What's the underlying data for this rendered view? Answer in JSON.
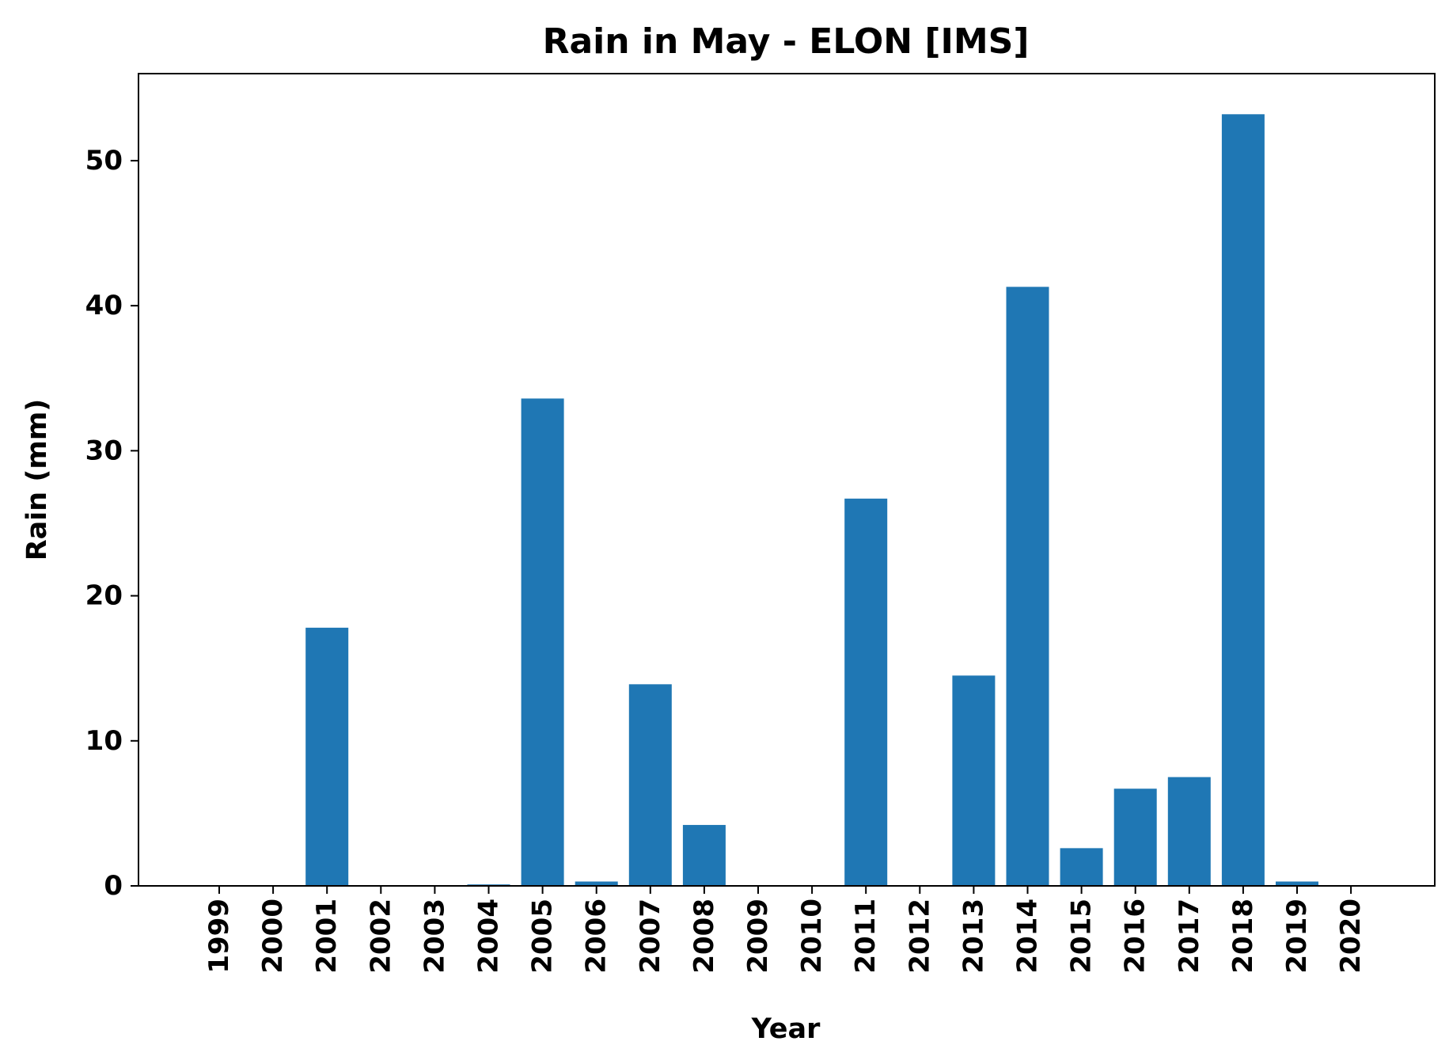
{
  "chart_data": {
    "type": "bar",
    "title": "Rain in May - ELON [IMS]",
    "xlabel": "Year",
    "ylabel": "Rain (mm)",
    "categories": [
      "1999",
      "2000",
      "2001",
      "2002",
      "2003",
      "2004",
      "2005",
      "2006",
      "2007",
      "2008",
      "2009",
      "2010",
      "2011",
      "2012",
      "2013",
      "2014",
      "2015",
      "2016",
      "2017",
      "2018",
      "2019",
      "2020"
    ],
    "values": [
      0,
      0,
      17.8,
      0,
      0,
      0.1,
      33.6,
      0.3,
      13.9,
      4.2,
      0,
      0,
      26.7,
      0,
      14.5,
      41.3,
      2.6,
      6.7,
      7.5,
      53.2,
      0.3,
      0
    ],
    "ylim": [
      0,
      56
    ],
    "yticks": [
      "0",
      "10",
      "20",
      "30",
      "40",
      "50"
    ],
    "grid": false,
    "legend": "none",
    "bar_color": "#1f77b4",
    "x_tick_rotation": "vertical"
  }
}
